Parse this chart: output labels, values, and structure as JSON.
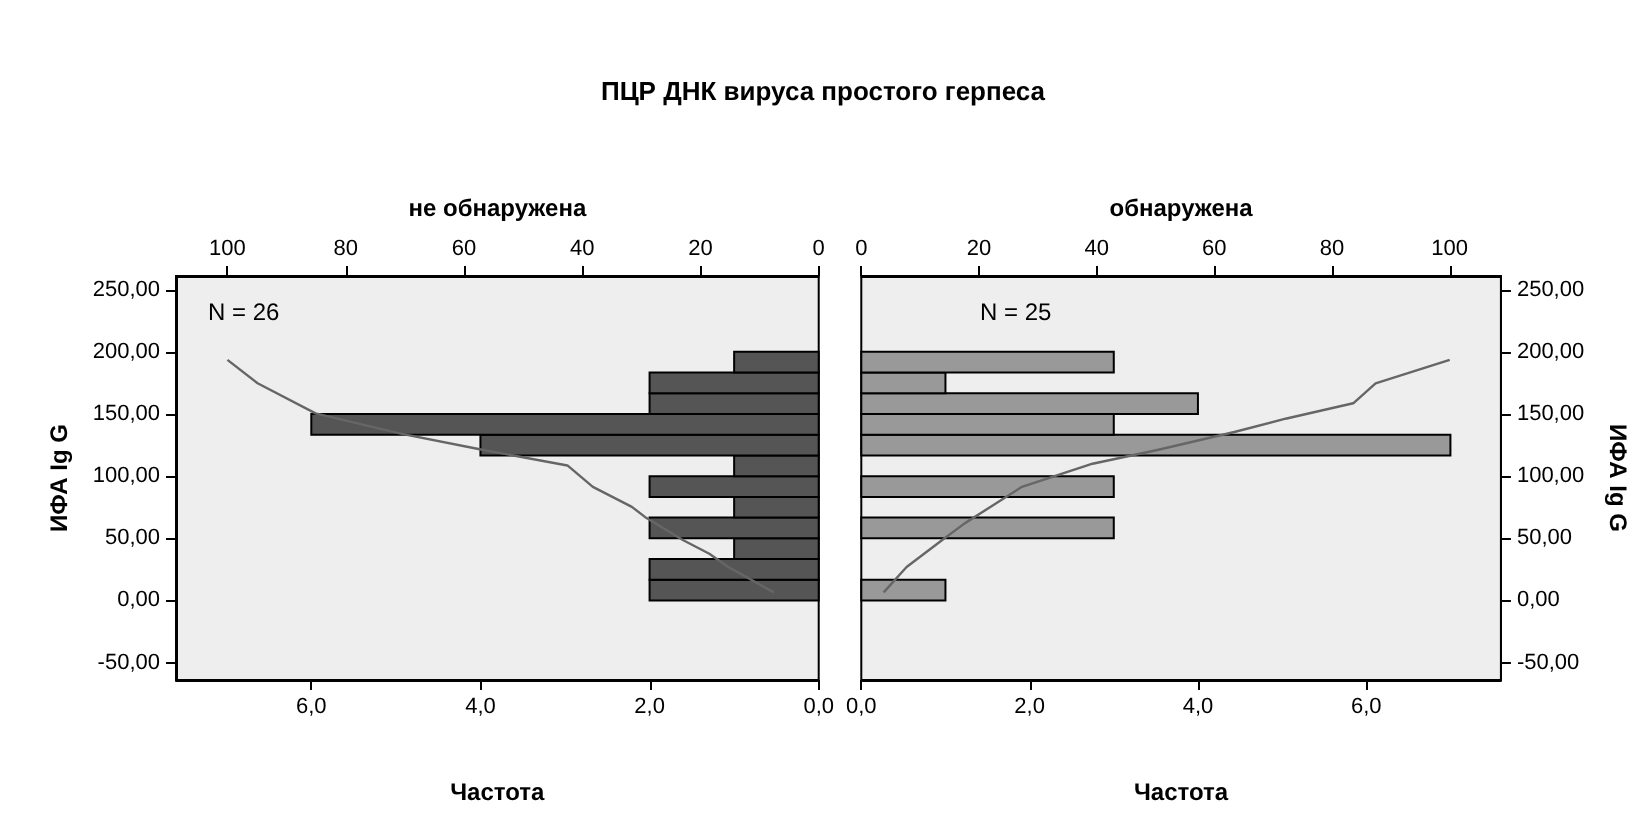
{
  "chart_data": [
    {
      "type": "histogram",
      "orientation": "horizontal",
      "title": "ПЦР ДНК вируса простого герпеса",
      "x2label": "не обнаружена",
      "xlabel": "Частота",
      "ylabel": "ИФА Ig G",
      "bins": [
        0,
        16.7,
        33.3,
        50,
        66.7,
        83.3,
        100,
        116.7,
        133.3,
        150,
        166.7,
        183.3,
        200
      ],
      "values": [
        2,
        2,
        1,
        2,
        1,
        2,
        1,
        4,
        6,
        2,
        2,
        1
      ],
      "color": "#555555",
      "series": [
        {
          "type": "line",
          "axis": "x2",
          "color": "#666666",
          "x": [
            6.5,
            26.9,
            37.6,
            48.4,
            67.2,
            75.3,
            91.4,
            108.6,
            121,
            134.4,
            150.5,
            174.7,
            193.5
          ],
          "values": [
            7.6,
            15.3,
            18.5,
            22.9,
            29.4,
            31.6,
            38.2,
            42.5,
            56.7,
            70.9,
            85.1,
            94.9,
            100
          ]
        }
      ],
      "xlim": [
        7.6,
        0
      ],
      "xticks": [
        {
          "value": 6,
          "label": "6,0"
        },
        {
          "value": 4,
          "label": "4,0"
        },
        {
          "value": 2,
          "label": "2,0"
        },
        {
          "value": 0,
          "label": "0,0"
        }
      ],
      "x2lim": [
        108.7,
        0
      ],
      "x2ticks": [
        100,
        80,
        60,
        40,
        20,
        0
      ],
      "ylim": [
        -64,
        261
      ],
      "yticks": [
        {
          "value": -50,
          "label": "-50,00"
        },
        {
          "value": 0,
          "label": "0,00"
        },
        {
          "value": 50,
          "label": "50,00"
        },
        {
          "value": 100,
          "label": "100,00"
        },
        {
          "value": 150,
          "label": "150,00"
        },
        {
          "value": 200,
          "label": "200,00"
        },
        {
          "value": 250,
          "label": "250,00"
        }
      ],
      "annotations": [
        "N = 26"
      ]
    },
    {
      "type": "histogram",
      "orientation": "horizontal",
      "x2label": "обнаружена",
      "xlabel": "Частота",
      "ylabel": "ИФА Ig G",
      "bins": [
        0,
        16.7,
        33.3,
        50,
        66.7,
        83.3,
        100,
        116.7,
        133.3,
        150,
        166.7,
        183.3,
        200
      ],
      "values": [
        1,
        0,
        0,
        3,
        0,
        3,
        0,
        7,
        3,
        4,
        1,
        3
      ],
      "color": "#999999",
      "series": [
        {
          "type": "line",
          "axis": "x2",
          "color": "#666666",
          "x": [
            6.5,
            26.9,
            48.4,
            61.8,
            91.4,
            110,
            121,
            135.5,
            146.2,
            158.6,
            174.7,
            193.5
          ],
          "values": [
            3.8,
            7.7,
            13.7,
            17.5,
            27.3,
            39.3,
            50.3,
            63.4,
            72.1,
            83.6,
            87.4,
            100
          ]
        }
      ],
      "xlim": [
        0,
        7.6
      ],
      "xticks": [
        {
          "value": 0,
          "label": "0,0"
        },
        {
          "value": 2,
          "label": "2,0"
        },
        {
          "value": 4,
          "label": "4,0"
        },
        {
          "value": 6,
          "label": "6,0"
        }
      ],
      "x2lim": [
        0,
        108.7
      ],
      "x2ticks": [
        0,
        20,
        40,
        60,
        80,
        100
      ],
      "ylim": [
        -64,
        261
      ],
      "yticks": [
        {
          "value": -50,
          "label": "-50,00"
        },
        {
          "value": 0,
          "label": "0,00"
        },
        {
          "value": 50,
          "label": "50,00"
        },
        {
          "value": 100,
          "label": "100,00"
        },
        {
          "value": 150,
          "label": "150,00"
        },
        {
          "value": 200,
          "label": "200,00"
        },
        {
          "value": 250,
          "label": "250,00"
        }
      ],
      "annotations": [
        "N = 25"
      ]
    }
  ]
}
